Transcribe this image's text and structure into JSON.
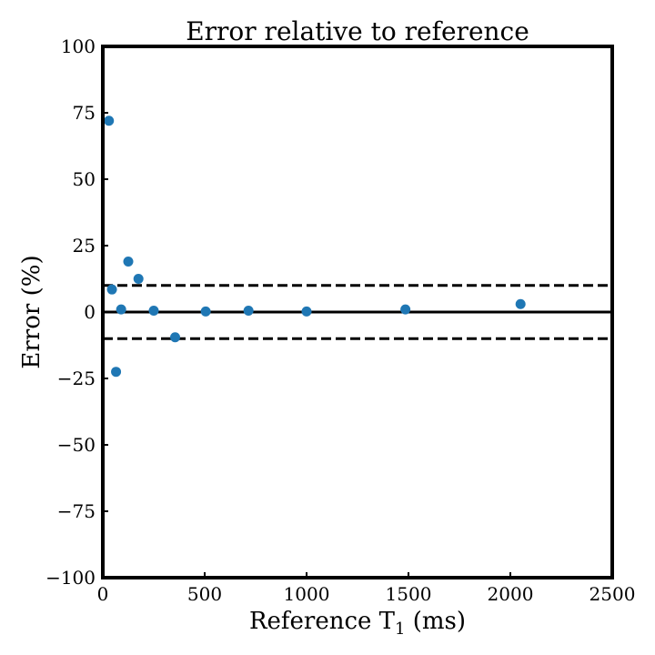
{
  "chart_data": {
    "type": "scatter",
    "title": "Error relative to reference",
    "xlabel": "Reference T",
    "xlabel_subscript": "1",
    "xlabel_unit": " (ms)",
    "ylabel": "Error (%)",
    "xlim": [
      0,
      2500
    ],
    "ylim": [
      -100,
      100
    ],
    "xticks": [
      0,
      500,
      1000,
      1500,
      2000,
      2500
    ],
    "yticks": [
      100,
      75,
      50,
      25,
      0,
      -25,
      -50,
      -75,
      -100
    ],
    "xtick_labels": [
      "0",
      "500",
      "1000",
      "1500",
      "2000",
      "2500"
    ],
    "ytick_labels": [
      "100",
      "75",
      "50",
      "25",
      "0",
      "−25",
      "−50",
      "−75",
      "−100"
    ],
    "grid": false,
    "reference_lines": [
      {
        "y": 0,
        "style": "solid"
      },
      {
        "y": 10,
        "style": "dashed"
      },
      {
        "y": -10,
        "style": "dashed"
      }
    ],
    "marker_color": "#1f77b4",
    "points": [
      {
        "x": 30,
        "y": 72
      },
      {
        "x": 45,
        "y": 8.5
      },
      {
        "x": 65,
        "y": -22.5
      },
      {
        "x": 90,
        "y": 1
      },
      {
        "x": 125,
        "y": 19
      },
      {
        "x": 175,
        "y": 12.5
      },
      {
        "x": 250,
        "y": 0.5
      },
      {
        "x": 355,
        "y": -9.5
      },
      {
        "x": 505,
        "y": 0.2
      },
      {
        "x": 715,
        "y": 0.5
      },
      {
        "x": 1000,
        "y": 0.2
      },
      {
        "x": 1485,
        "y": 1
      },
      {
        "x": 2050,
        "y": 3
      }
    ]
  }
}
